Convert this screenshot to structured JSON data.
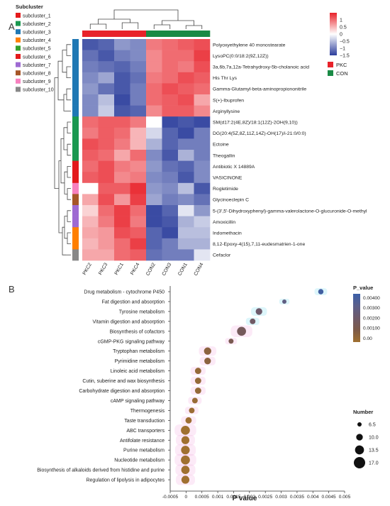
{
  "panel_labels": [
    "A",
    "B"
  ],
  "chart_data": [
    {
      "type": "heatmap",
      "panel": "A",
      "columns": [
        "PKC2",
        "PKC3",
        "PKC1",
        "PKC4",
        "CON2",
        "CON3",
        "CON1",
        "CON4"
      ],
      "column_groups": [
        "PKC",
        "PKC",
        "PKC",
        "PKC",
        "CON",
        "CON",
        "CON",
        "CON"
      ],
      "rows": [
        "Polyoxyethylene 40 monostearate",
        "LysoPC(0:0/18:2(9Z,12Z))",
        "3a,6b,7a,12a-Tetrahydroxy-5b-cholanoic acid",
        "His Thr Lys",
        "Gamma-Glutamyl-beta-aminopropiononitrile",
        "S(+)-Ibuprofen",
        "Arginyllysine",
        "SM(d17:2(4E,8Z)/18:1(12Z)-2OH(9,10))",
        "DG(20:4(5Z,8Z,11Z,14Z)-OH(17)/i-21:0/0:0)",
        "Ectoine",
        "Theogallin",
        "Antibiotic X 14889A",
        "VASICINONE",
        "Rogletimide",
        "Glycinoeclepin C",
        "5-(3',5'-Dihydroxyphenyl)-gamma-valerolactone-O-glucuronide-O-methyl",
        "Amoxicillin",
        "Indomethacin",
        "8,12-Epoxy-4(15),7,11-eudesmatrien-1-one",
        "Cefaclor"
      ],
      "values": [
        [
          -1.3,
          -1.2,
          -0.8,
          -0.9,
          0.9,
          1.0,
          1.1,
          1.2
        ],
        [
          -1.1,
          -1.3,
          -1.0,
          -0.9,
          0.8,
          1.0,
          1.0,
          1.3
        ],
        [
          -1.0,
          -1.1,
          -1.2,
          -1.0,
          0.8,
          1.0,
          0.9,
          1.2
        ],
        [
          -0.9,
          -0.7,
          -1.3,
          -1.1,
          0.9,
          1.0,
          1.2,
          1.1
        ],
        [
          -0.8,
          -1.1,
          -1.3,
          -1.0,
          1.0,
          1.2,
          1.1,
          1.0
        ],
        [
          -0.9,
          -0.5,
          -1.4,
          -1.0,
          1.0,
          1.1,
          1.2,
          0.6
        ],
        [
          -0.9,
          -0.4,
          -1.3,
          -1.2,
          0.8,
          1.1,
          1.1,
          0.8
        ],
        [
          1.0,
          1.1,
          1.1,
          0.9,
          0.0,
          -1.4,
          -1.3,
          -1.4
        ],
        [
          0.9,
          1.1,
          1.0,
          0.5,
          -0.3,
          -1.2,
          -1.4,
          -1.0
        ],
        [
          1.2,
          1.1,
          0.9,
          0.5,
          -0.6,
          -1.2,
          -1.0,
          -1.0
        ],
        [
          1.1,
          1.0,
          0.6,
          1.0,
          -0.9,
          -1.3,
          -0.6,
          -1.0
        ],
        [
          1.0,
          1.2,
          0.9,
          0.8,
          -0.8,
          -1.1,
          -1.2,
          -0.9
        ],
        [
          1.1,
          1.2,
          0.8,
          0.9,
          -0.9,
          -1.0,
          -1.3,
          -0.9
        ],
        [
          0.0,
          1.1,
          1.1,
          1.4,
          -0.8,
          -0.9,
          -0.5,
          -1.3
        ],
        [
          0.6,
          1.2,
          0.7,
          1.3,
          -0.7,
          -1.0,
          -0.9,
          -1.1
        ],
        [
          0.3,
          1.0,
          1.3,
          1.0,
          -1.4,
          -1.2,
          -0.2,
          -0.8
        ],
        [
          0.5,
          0.9,
          1.3,
          0.9,
          -1.4,
          -1.3,
          -0.6,
          -0.4
        ],
        [
          0.6,
          0.7,
          1.2,
          1.1,
          -1.2,
          -1.4,
          -0.5,
          -0.5
        ],
        [
          0.5,
          0.7,
          1.0,
          1.3,
          -1.2,
          -1.0,
          -0.6,
          -0.6
        ],
        [
          0.6,
          0.6,
          1.0,
          1.1,
          -1.1,
          -1.0,
          -1.0,
          -0.2
        ]
      ],
      "row_subclusters": [
        3,
        3,
        3,
        3,
        3,
        3,
        3,
        2,
        2,
        2,
        2,
        6,
        6,
        9,
        8,
        7,
        7,
        4,
        4,
        10
      ],
      "subcluster_legend": {
        "title": "Subcluster",
        "items": [
          {
            "label": "subcluster_1",
            "color": "#e41a1c"
          },
          {
            "label": "subcluster_2",
            "color": "#1a9850"
          },
          {
            "label": "subcluster_3",
            "color": "#1f78b4"
          },
          {
            "label": "subcluster_4",
            "color": "#ff7f00"
          },
          {
            "label": "subcluster_5",
            "color": "#33a02c"
          },
          {
            "label": "subcluster_6",
            "color": "#e31a1c"
          },
          {
            "label": "subcluster_7",
            "color": "#9e6ad2"
          },
          {
            "label": "subcluster_8",
            "color": "#a65628"
          },
          {
            "label": "subcluster_9",
            "color": "#f781bf"
          },
          {
            "label": "subcluster_10",
            "color": "#888888"
          }
        ]
      },
      "color_scale": {
        "min": -1.5,
        "max": 1.5,
        "ticks": [
          "1",
          "0.5",
          "0",
          "−0.5",
          "−1",
          "−1.5"
        ],
        "low_color": "#2c3e9c",
        "mid_color": "#ffffff",
        "high_color": "#e8222a"
      },
      "group_legend": [
        {
          "label": "PKC",
          "color": "#e8222a"
        },
        {
          "label": "CON",
          "color": "#1a8a45"
        }
      ]
    },
    {
      "type": "scatter",
      "panel": "B",
      "xlabel": "P value",
      "xlim": [
        -0.0005,
        0.005
      ],
      "x_ticks": [
        "-0.0005",
        "0",
        "0.0005",
        "0.001",
        "0.0015",
        "0.002",
        "0.0025",
        "0.003",
        "0.0035",
        "0.004",
        "0.0045",
        "0.005"
      ],
      "categories": [
        "Drug metabolism - cytochrome P450",
        "Fat digestion and absorption",
        "Tyrosine metabolism",
        "Vitamin digestion and absorption",
        "Biosynthesis of cofactors",
        "cGMP-PKG signaling pathway",
        "Tryptophan metabolism",
        "Pyrimidine metabolism",
        "Linoleic acid metabolism",
        "Cutin, suberine and wax biosynthesis",
        "Carbohydrate digestion and absorption",
        "cAMP signaling pathway",
        "Thermogenesis",
        "Taste transduction",
        "ABC transporters",
        "Antifolate resistance",
        "Purine metabolism",
        "Nucleotide metabolism",
        "Biosynthesis of alkaloids derived from histidine and purine",
        "Regulation of lipolysis in adipocytes"
      ],
      "x": [
        0.00425,
        0.0031,
        0.0023,
        0.0021,
        0.00175,
        0.00142,
        0.00068,
        0.00068,
        0.00038,
        0.00038,
        0.00038,
        0.00028,
        0.00018,
        8e-05,
        -2e-05,
        -2e-05,
        -2e-05,
        -2e-05,
        -2e-05,
        -2e-05
      ],
      "number": [
        8.0,
        6.5,
        10.0,
        8.5,
        13.5,
        7.5,
        11.0,
        10.0,
        9.5,
        9.5,
        9.5,
        8.5,
        8.5,
        9.5,
        13.5,
        12.0,
        13.0,
        13.5,
        12.5,
        12.0
      ],
      "p_value_legend": {
        "title": "P_value",
        "ticks": [
          "0.00400",
          "0.00300",
          "0.00200",
          "0.00100",
          "0.00"
        ],
        "colors": [
          "#3b5fa8",
          "#5c5f8a",
          "#6e5a6a",
          "#7d5a48",
          "#a07030"
        ]
      },
      "number_legend": {
        "title": "Number",
        "ticks": [
          "6.5",
          "10.0",
          "13.5",
          "17.0"
        ]
      }
    }
  ]
}
